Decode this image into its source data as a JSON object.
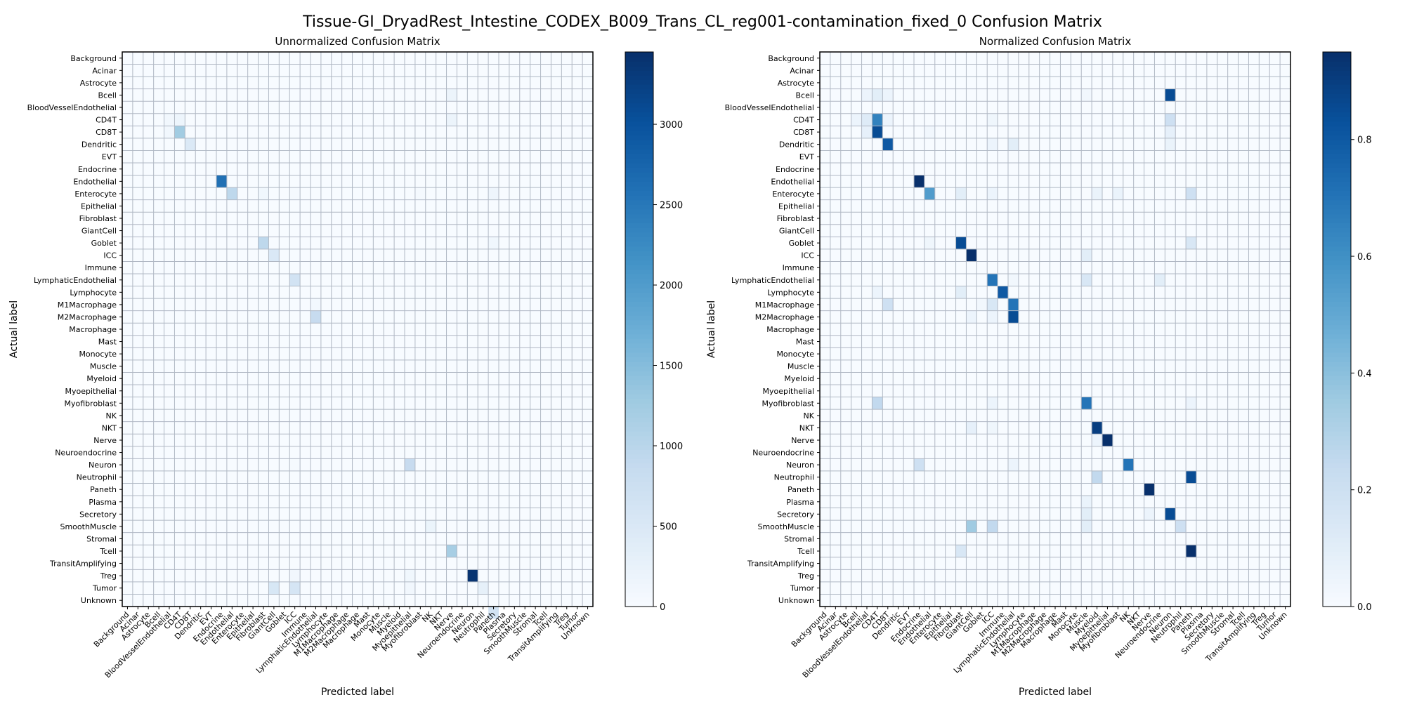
{
  "title": "Tissue-GI_DryadRest_Intestine_CODEX_B009_Trans_CL_reg001-contamination_fixed_0 Confusion Matrix",
  "chart_data": [
    {
      "type": "heatmap",
      "title": "Unnormalized Confusion Matrix",
      "xlabel": "Predicted label",
      "ylabel": "Actual label",
      "colormap": "Blues",
      "colorbar": {
        "min": 0,
        "max": 3450,
        "ticks": [
          0,
          500,
          1000,
          1500,
          2000,
          2500,
          3000
        ]
      },
      "grid": true,
      "cells": [
        [
          3,
          31,
          190
        ],
        [
          5,
          4,
          100
        ],
        [
          5,
          5,
          170
        ],
        [
          5,
          31,
          190
        ],
        [
          6,
          5,
          1250
        ],
        [
          6,
          4,
          100
        ],
        [
          7,
          6,
          480
        ],
        [
          10,
          9,
          2600
        ],
        [
          11,
          10,
          950
        ],
        [
          11,
          13,
          120
        ],
        [
          11,
          16,
          60
        ],
        [
          11,
          28,
          60
        ],
        [
          11,
          35,
          160
        ],
        [
          15,
          13,
          950
        ],
        [
          15,
          35,
          120
        ],
        [
          16,
          14,
          500
        ],
        [
          18,
          16,
          650
        ],
        [
          20,
          18,
          80
        ],
        [
          21,
          18,
          850
        ],
        [
          33,
          27,
          850
        ],
        [
          33,
          16,
          40
        ],
        [
          38,
          29,
          200
        ],
        [
          40,
          31,
          1200
        ],
        [
          42,
          33,
          3400
        ],
        [
          42,
          27,
          120
        ],
        [
          42,
          16,
          100
        ],
        [
          43,
          14,
          550
        ],
        [
          43,
          16,
          600
        ],
        [
          43,
          27,
          100
        ],
        [
          43,
          34,
          300
        ],
        [
          45,
          35,
          650
        ]
      ]
    },
    {
      "type": "heatmap",
      "title": "Normalized Confusion Matrix",
      "xlabel": "Predicted label",
      "ylabel": "Actual label",
      "colormap": "Blues",
      "colorbar": {
        "min": 0,
        "max": 0.95,
        "ticks": [
          0.0,
          0.2,
          0.4,
          0.6,
          0.8
        ]
      },
      "grid": true,
      "cells": [
        [
          3,
          33,
          0.85
        ],
        [
          3,
          5,
          0.1
        ],
        [
          3,
          4,
          0.05
        ],
        [
          3,
          6,
          0.05
        ],
        [
          3,
          25,
          0.03
        ],
        [
          5,
          5,
          0.65
        ],
        [
          5,
          4,
          0.12
        ],
        [
          5,
          33,
          0.2
        ],
        [
          5,
          3,
          0.05
        ],
        [
          5,
          6,
          0.05
        ],
        [
          5,
          16,
          0.04
        ],
        [
          6,
          5,
          0.85
        ],
        [
          6,
          4,
          0.08
        ],
        [
          6,
          10,
          0.03
        ],
        [
          6,
          33,
          0.08
        ],
        [
          7,
          6,
          0.8
        ],
        [
          7,
          16,
          0.05
        ],
        [
          7,
          18,
          0.1
        ],
        [
          7,
          33,
          0.06
        ],
        [
          10,
          9,
          0.95
        ],
        [
          11,
          10,
          0.55
        ],
        [
          11,
          13,
          0.1
        ],
        [
          11,
          16,
          0.05
        ],
        [
          11,
          26,
          0.06
        ],
        [
          11,
          28,
          0.06
        ],
        [
          11,
          35,
          0.2
        ],
        [
          15,
          13,
          0.85
        ],
        [
          15,
          10,
          0.04
        ],
        [
          15,
          35,
          0.15
        ],
        [
          16,
          14,
          0.95
        ],
        [
          16,
          25,
          0.1
        ],
        [
          18,
          16,
          0.7
        ],
        [
          18,
          25,
          0.15
        ],
        [
          18,
          32,
          0.1
        ],
        [
          18,
          18,
          0.03
        ],
        [
          19,
          17,
          0.8
        ],
        [
          19,
          13,
          0.1
        ],
        [
          19,
          5,
          0.05
        ],
        [
          20,
          18,
          0.7
        ],
        [
          20,
          16,
          0.15
        ],
        [
          20,
          6,
          0.2
        ],
        [
          20,
          15,
          0.03
        ],
        [
          21,
          18,
          0.85
        ],
        [
          21,
          14,
          0.05
        ],
        [
          21,
          16,
          0.05
        ],
        [
          28,
          25,
          0.7
        ],
        [
          28,
          5,
          0.25
        ],
        [
          28,
          16,
          0.05
        ],
        [
          28,
          35,
          0.05
        ],
        [
          30,
          26,
          0.9
        ],
        [
          30,
          14,
          0.08
        ],
        [
          30,
          16,
          0.04
        ],
        [
          31,
          27,
          0.95
        ],
        [
          31,
          26,
          0.05
        ],
        [
          33,
          29,
          0.7
        ],
        [
          33,
          9,
          0.2
        ],
        [
          33,
          18,
          0.05
        ],
        [
          34,
          35,
          0.85
        ],
        [
          34,
          26,
          0.25
        ],
        [
          35,
          31,
          0.95
        ],
        [
          36,
          25,
          0.06
        ],
        [
          37,
          33,
          0.85
        ],
        [
          37,
          25,
          0.1
        ],
        [
          37,
          31,
          0.05
        ],
        [
          38,
          14,
          0.35
        ],
        [
          38,
          16,
          0.25
        ],
        [
          38,
          25,
          0.1
        ],
        [
          38,
          34,
          0.2
        ],
        [
          40,
          35,
          0.95
        ],
        [
          40,
          13,
          0.15
        ]
      ]
    }
  ],
  "labels": [
    "Background",
    "Acinar",
    "Astrocyte",
    "Bcell",
    "BloodVesselEndothelial",
    "CD4T",
    "CD8T",
    "Dendritic",
    "EVT",
    "Endocrine",
    "Endothelial",
    "Enterocyte",
    "Epithelial",
    "Fibroblast",
    "GiantCell",
    "Goblet",
    "ICC",
    "Immune",
    "LymphaticEndothelial",
    "Lymphocyte",
    "M1Macrophage",
    "M2Macrophage",
    "Macrophage",
    "Mast",
    "Monocyte",
    "Muscle",
    "Myeloid",
    "Myoepithelial",
    "Myofibroblast",
    "NK",
    "NKT",
    "Nerve",
    "Neuroendocrine",
    "Neuron",
    "Neutrophil",
    "Paneth",
    "Plasma",
    "Secretory",
    "SmoothMuscle",
    "Stromal",
    "Tcell",
    "TransitAmplifying",
    "Treg",
    "Tumor",
    "Unknown"
  ],
  "colors": {
    "grid": "#b0b8c4",
    "low": "#f7fbff",
    "high": "#08306b"
  }
}
